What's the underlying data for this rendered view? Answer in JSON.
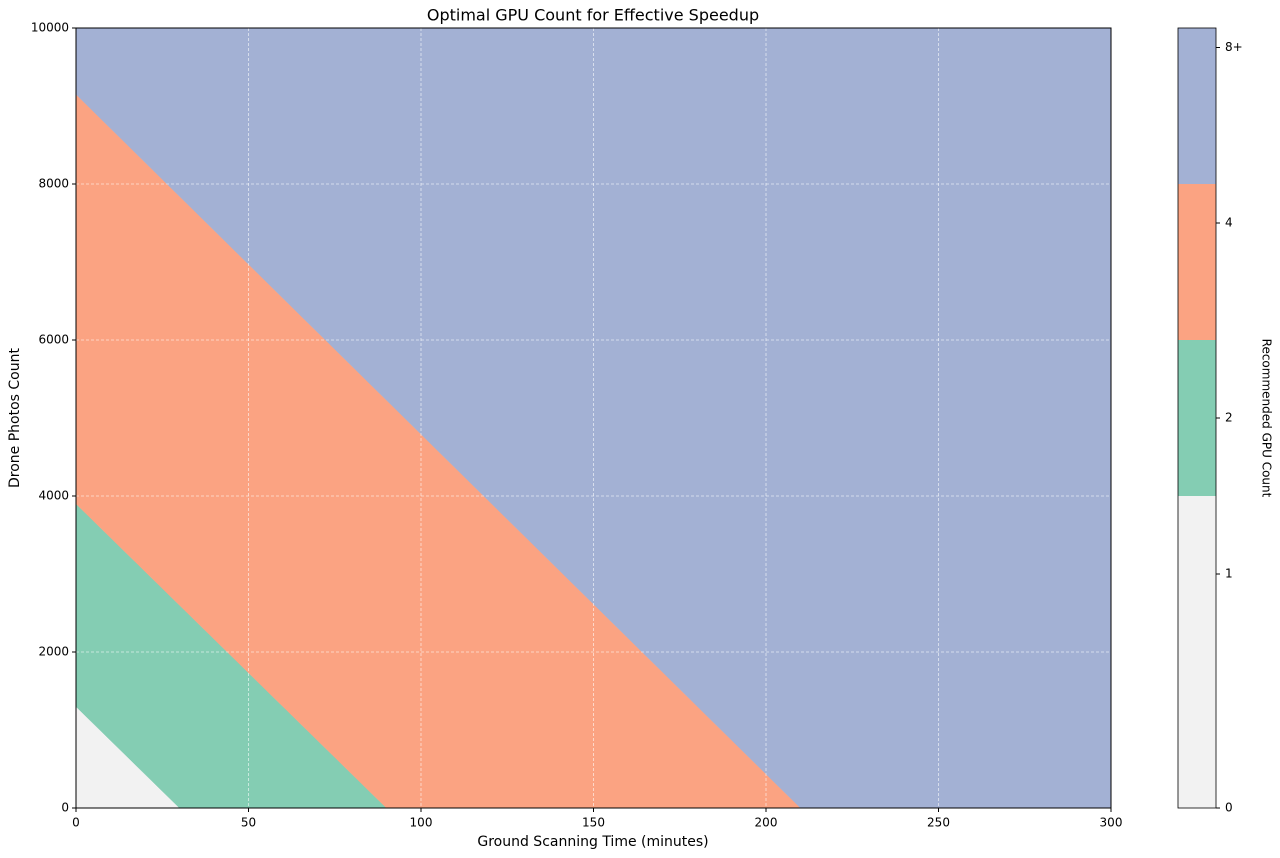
{
  "chart_data": {
    "type": "region",
    "title": "Optimal GPU Count for Effective Speedup",
    "x_label": "Ground Scanning Time (minutes)",
    "y_label": "Drone Photos Count",
    "xlim": [
      0,
      300
    ],
    "ylim": [
      0,
      10000
    ],
    "xticks": [
      0,
      50,
      100,
      150,
      200,
      250,
      300
    ],
    "yticks": [
      0,
      2000,
      4000,
      6000,
      8000,
      10000
    ],
    "grid": true,
    "regions": [
      {
        "value": 1,
        "x": [
          0,
          30,
          0
        ],
        "y": [
          0,
          0,
          1300
        ]
      },
      {
        "value": 2,
        "x": [
          30,
          90,
          0,
          0
        ],
        "y": [
          0,
          0,
          3900,
          1300
        ]
      },
      {
        "value": 4,
        "x": [
          90,
          210,
          0,
          0
        ],
        "y": [
          0,
          0,
          9150,
          3900
        ]
      },
      {
        "value": 8,
        "x": [
          210,
          300,
          300,
          0,
          0
        ],
        "y": [
          0,
          0,
          10000,
          10000,
          9150
        ]
      }
    ],
    "colorbar": {
      "label": "Recommended GPU Count",
      "boundaries": [
        0,
        0.5,
        1.5,
        2.5,
        4.5,
        8.5
      ],
      "colors": [
        "#f2f2f2",
        "#f2f2f2",
        "#84cdb3",
        "#fba382",
        "#a3b1d4"
      ],
      "ticks": [
        0,
        1,
        2,
        4,
        {
          "value": 8,
          "label": "8+"
        }
      ]
    }
  }
}
